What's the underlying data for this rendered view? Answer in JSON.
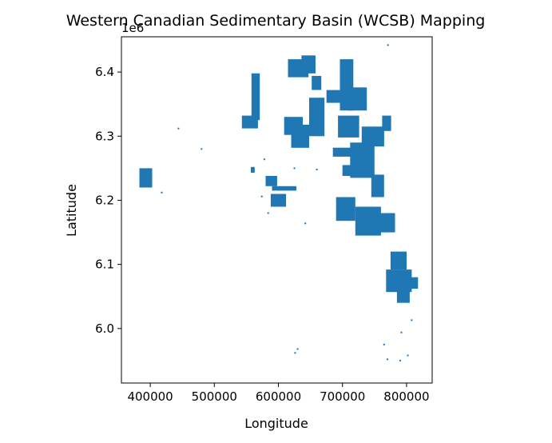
{
  "chart_data": {
    "type": "map",
    "title": "Western Canadian Sedimentary Basin (WCSB) Mapping",
    "xlabel": "Longitude",
    "ylabel": "Latitude",
    "offset_label": "1e6",
    "xlim": [
      355000,
      840000
    ],
    "ylim": [
      5915000,
      6455000
    ],
    "x_ticks": [
      400000,
      500000,
      600000,
      700000,
      800000
    ],
    "x_tick_labels": [
      "400000",
      "500000",
      "600000",
      "700000",
      "800000"
    ],
    "y_ticks": [
      6000000,
      6100000,
      6200000,
      6300000,
      6400000
    ],
    "y_tick_labels": [
      "6.0",
      "6.1",
      "6.2",
      "6.3",
      "6.4"
    ],
    "grid": false,
    "fill_color": "#1f77b4",
    "polygons": [
      {
        "name": "north-block-a",
        "x0": 615000,
        "x1": 647000,
        "y0": 6392000,
        "y1": 6420000
      },
      {
        "name": "north-block-b",
        "x0": 636000,
        "x1": 658000,
        "y0": 6398000,
        "y1": 6426000
      },
      {
        "name": "north-block-c",
        "x0": 652000,
        "x1": 667000,
        "y0": 6372000,
        "y1": 6394000
      },
      {
        "name": "north-strip-a",
        "x0": 558000,
        "x1": 571000,
        "y0": 6325000,
        "y1": 6398000
      },
      {
        "name": "north-strip-b",
        "x0": 543000,
        "x1": 568000,
        "y0": 6312000,
        "y1": 6332000
      },
      {
        "name": "north-east-a",
        "x0": 675000,
        "x1": 708000,
        "y0": 6352000,
        "y1": 6372000
      },
      {
        "name": "north-east-b",
        "x0": 696000,
        "x1": 717000,
        "y0": 6340000,
        "y1": 6420000
      },
      {
        "name": "north-east-c",
        "x0": 708000,
        "x1": 738000,
        "y0": 6340000,
        "y1": 6376000
      },
      {
        "name": "mid-north-a",
        "x0": 609000,
        "x1": 638000,
        "y0": 6302000,
        "y1": 6330000
      },
      {
        "name": "mid-north-b",
        "x0": 620000,
        "x1": 648000,
        "y0": 6282000,
        "y1": 6318000
      },
      {
        "name": "mid-north-c",
        "x0": 648000,
        "x1": 672000,
        "y0": 6300000,
        "y1": 6360000
      },
      {
        "name": "mid-north-d",
        "x0": 693000,
        "x1": 726000,
        "y0": 6298000,
        "y1": 6332000
      },
      {
        "name": "mid-east-a",
        "x0": 730000,
        "x1": 765000,
        "y0": 6284000,
        "y1": 6315000
      },
      {
        "name": "mid-east-b",
        "x0": 762000,
        "x1": 776000,
        "y0": 6308000,
        "y1": 6332000
      },
      {
        "name": "central-a",
        "x0": 685000,
        "x1": 718000,
        "y0": 6268000,
        "y1": 6282000
      },
      {
        "name": "central-b",
        "x0": 712000,
        "x1": 750000,
        "y0": 6235000,
        "y1": 6290000
      },
      {
        "name": "central-c",
        "x0": 745000,
        "x1": 765000,
        "y0": 6205000,
        "y1": 6240000
      },
      {
        "name": "central-d",
        "x0": 700000,
        "x1": 728000,
        "y0": 6238000,
        "y1": 6255000
      },
      {
        "name": "west-mid-a",
        "x0": 580000,
        "x1": 598000,
        "y0": 6222000,
        "y1": 6238000
      },
      {
        "name": "west-mid-b",
        "x0": 590000,
        "x1": 628000,
        "y0": 6215000,
        "y1": 6222000
      },
      {
        "name": "west-mid-c",
        "x0": 588000,
        "x1": 612000,
        "y0": 6190000,
        "y1": 6210000
      },
      {
        "name": "west-mid-d",
        "x0": 557000,
        "x1": 563000,
        "y0": 6243000,
        "y1": 6252000
      },
      {
        "name": "far-west-a",
        "x0": 383000,
        "x1": 403000,
        "y0": 6220000,
        "y1": 6250000
      },
      {
        "name": "south-central-a",
        "x0": 690000,
        "x1": 720000,
        "y0": 6168000,
        "y1": 6205000
      },
      {
        "name": "south-central-b",
        "x0": 720000,
        "x1": 760000,
        "y0": 6145000,
        "y1": 6190000
      },
      {
        "name": "south-central-c",
        "x0": 755000,
        "x1": 782000,
        "y0": 6150000,
        "y1": 6180000
      },
      {
        "name": "south-east-a",
        "x0": 775000,
        "x1": 800000,
        "y0": 6092000,
        "y1": 6120000
      },
      {
        "name": "south-east-b",
        "x0": 768000,
        "x1": 808000,
        "y0": 6057000,
        "y1": 6092000
      },
      {
        "name": "south-east-c",
        "x0": 795000,
        "x1": 818000,
        "y0": 6062000,
        "y1": 6080000
      },
      {
        "name": "south-east-d",
        "x0": 785000,
        "x1": 805000,
        "y0": 6040000,
        "y1": 6060000
      }
    ],
    "specks": [
      {
        "x": 444000,
        "y": 6312000
      },
      {
        "x": 480000,
        "y": 6280000
      },
      {
        "x": 418000,
        "y": 6212000
      },
      {
        "x": 578000,
        "y": 6264000
      },
      {
        "x": 625000,
        "y": 6250000
      },
      {
        "x": 642000,
        "y": 6164000
      },
      {
        "x": 584000,
        "y": 6180000
      },
      {
        "x": 771000,
        "y": 6442000
      },
      {
        "x": 626000,
        "y": 5962000
      },
      {
        "x": 630000,
        "y": 5968000
      },
      {
        "x": 765000,
        "y": 5975000
      },
      {
        "x": 770000,
        "y": 5952000
      },
      {
        "x": 790000,
        "y": 5950000
      },
      {
        "x": 792000,
        "y": 5994000
      },
      {
        "x": 808000,
        "y": 6013000
      },
      {
        "x": 802000,
        "y": 5958000
      },
      {
        "x": 660000,
        "y": 6248000
      },
      {
        "x": 574000,
        "y": 6206000
      }
    ]
  }
}
